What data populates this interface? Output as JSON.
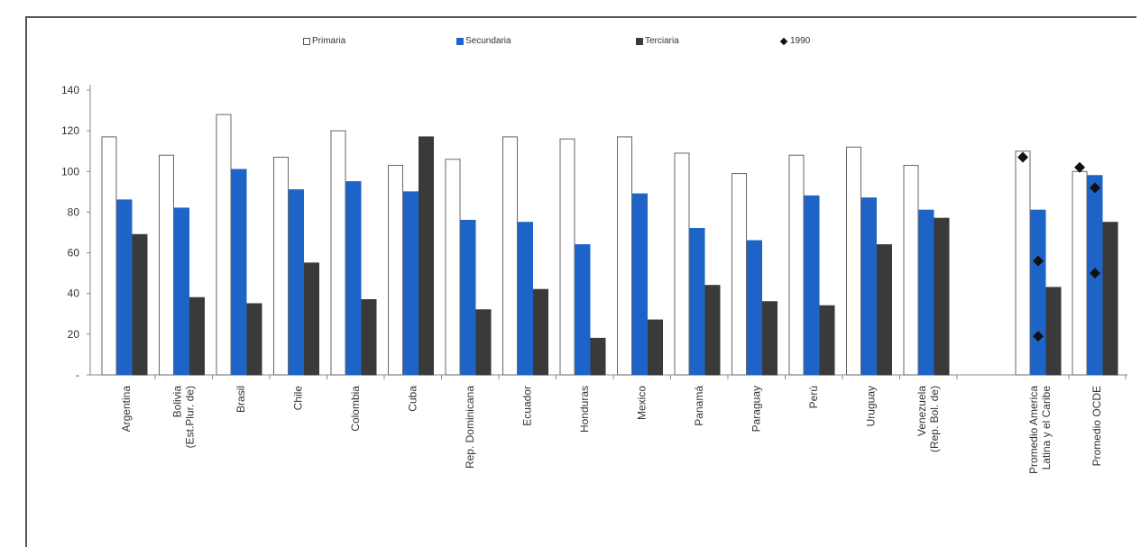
{
  "chart_data": {
    "type": "bar",
    "categories": [
      "Argentina",
      "Bolivia\n(Est.Plur. de)",
      "Brasil",
      "Chile",
      "Colombia",
      "Cuba",
      "Rep. Dominicana",
      "Ecuador",
      "Honduras",
      "Mexico",
      "Panamá",
      "Paraguay",
      "Perú",
      "Uruguay",
      "Venezuela\n(Rep. Bol. de)",
      "Promedio America\nLatina y el Caribe",
      "Promedio OCDE"
    ],
    "series": [
      {
        "name": "Primaria",
        "color": "#ffffff",
        "values": [
          117,
          108,
          128,
          107,
          120,
          103,
          106,
          117,
          116,
          117,
          109,
          99,
          108,
          112,
          103,
          110,
          100
        ]
      },
      {
        "name": "Secundaria",
        "color": "#1e64c8",
        "values": [
          86,
          82,
          101,
          91,
          95,
          90,
          76,
          75,
          64,
          89,
          72,
          66,
          88,
          87,
          81,
          81,
          98
        ]
      },
      {
        "name": "Terciaria",
        "color": "#3a3a3a",
        "values": [
          69,
          38,
          35,
          55,
          37,
          117,
          32,
          42,
          18,
          27,
          44,
          36,
          34,
          64,
          77,
          43,
          75
        ]
      }
    ],
    "markers_1990": {
      "name": "1990",
      "color": "#111111",
      "points": [
        {
          "category": "Promedio America\nLatina y el Caribe",
          "primaria": 107,
          "secundaria": 56,
          "terciaria": 19
        },
        {
          "category": "Promedio OCDE",
          "primaria": 102,
          "secundaria": 92,
          "terciaria": 50
        }
      ]
    },
    "ylim": [
      0,
      140
    ],
    "yticks": [
      "-",
      "20",
      "40",
      "60",
      "80",
      "100",
      "120",
      "140"
    ],
    "title": "",
    "xlabel": "",
    "ylabel": "",
    "legend_position": "top",
    "grid": false
  }
}
